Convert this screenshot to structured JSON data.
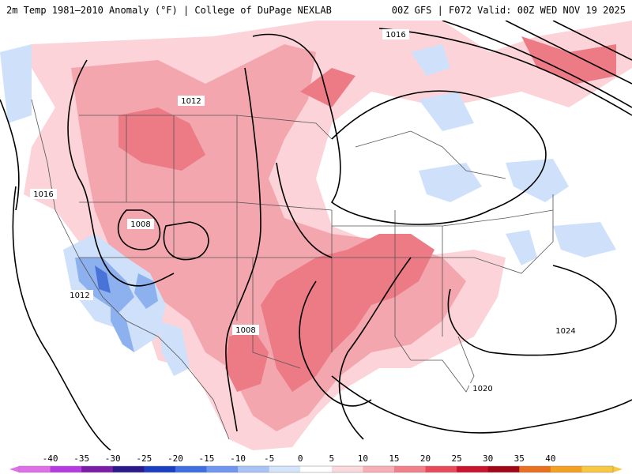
{
  "header": {
    "title_left": "2m Temp 1981–2010 Anomaly (°F) | College of DuPage NEXLAB",
    "title_right": "00Z GFS | F072 Valid: 00Z WED NOV 19 2025"
  },
  "contours": {
    "labels": [
      "1016",
      "1012",
      "1016",
      "1008",
      "1012",
      "1008",
      "1024",
      "1020"
    ]
  },
  "colorbar": {
    "ticks": [
      "-40",
      "-35",
      "-30",
      "-25",
      "-20",
      "-15",
      "-10",
      "-5",
      "0",
      "5",
      "10",
      "15",
      "20",
      "25",
      "30",
      "35",
      "40"
    ],
    "colors": [
      "#e070e8",
      "#b43ce0",
      "#7a1ea8",
      "#2a1a8a",
      "#1b3fc0",
      "#3f6fe0",
      "#7096f0",
      "#a8c4f6",
      "#d4e4fb",
      "#ffffff",
      "#fbd8dc",
      "#f7aeb4",
      "#f2808a",
      "#e84a5a",
      "#c8142c",
      "#a00818",
      "#e87020",
      "#f4a020",
      "#f8c840"
    ]
  },
  "colors": {
    "warm_light": "#fbd3d8",
    "warm_mid": "#f4a6ae",
    "warm_strong": "#ec7b86",
    "cool_light": "#cfe1fa",
    "cool_mid": "#8db0ef",
    "cool_strong": "#4a73d8",
    "isobar": "#000000",
    "border": "#555555"
  },
  "icons": {
    "map": "weather-anomaly-map"
  }
}
